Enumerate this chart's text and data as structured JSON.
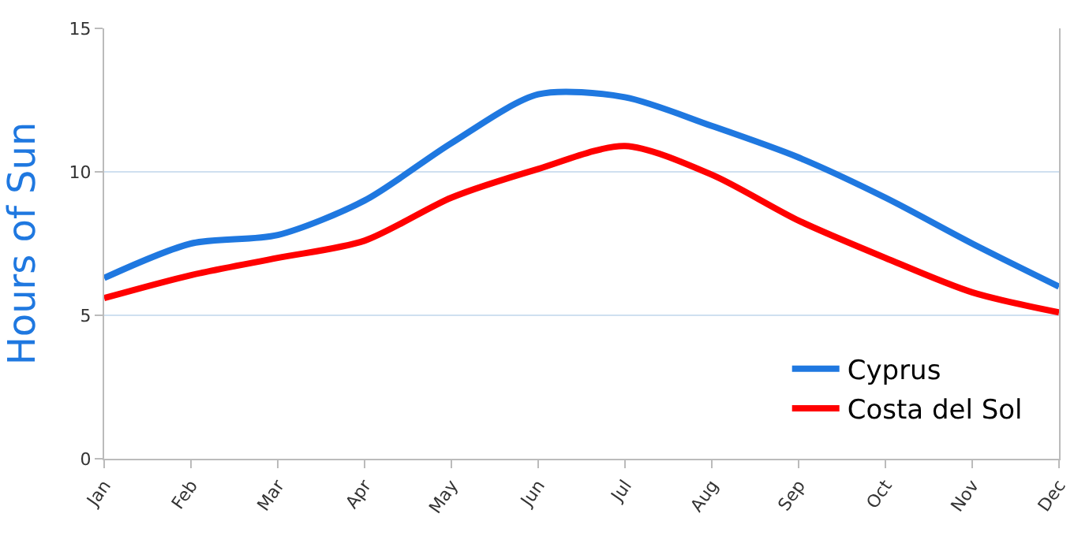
{
  "chart_data": {
    "type": "line",
    "ylabel": "Hours of Sun",
    "categories": [
      "Jan",
      "Feb",
      "Mar",
      "Apr",
      "May",
      "Jun",
      "Jul",
      "Aug",
      "Sep",
      "Oct",
      "Nov",
      "Dec"
    ],
    "series": [
      {
        "name": "Cyprus",
        "color": "#1f78e0",
        "values": [
          6.3,
          7.5,
          7.8,
          9.0,
          11.0,
          12.7,
          12.6,
          11.6,
          10.5,
          9.1,
          7.5,
          6.0
        ]
      },
      {
        "name": "Costa del Sol",
        "color": "#ff0000",
        "values": [
          5.6,
          6.4,
          7.0,
          7.6,
          9.1,
          10.1,
          10.9,
          9.9,
          8.3,
          7.0,
          5.8,
          5.1
        ]
      }
    ],
    "ylim": [
      0,
      15
    ],
    "yticks": [
      0,
      5,
      10,
      15
    ],
    "grid": "y",
    "legend": "bottom right",
    "marker": "none",
    "line_style": "solid"
  }
}
